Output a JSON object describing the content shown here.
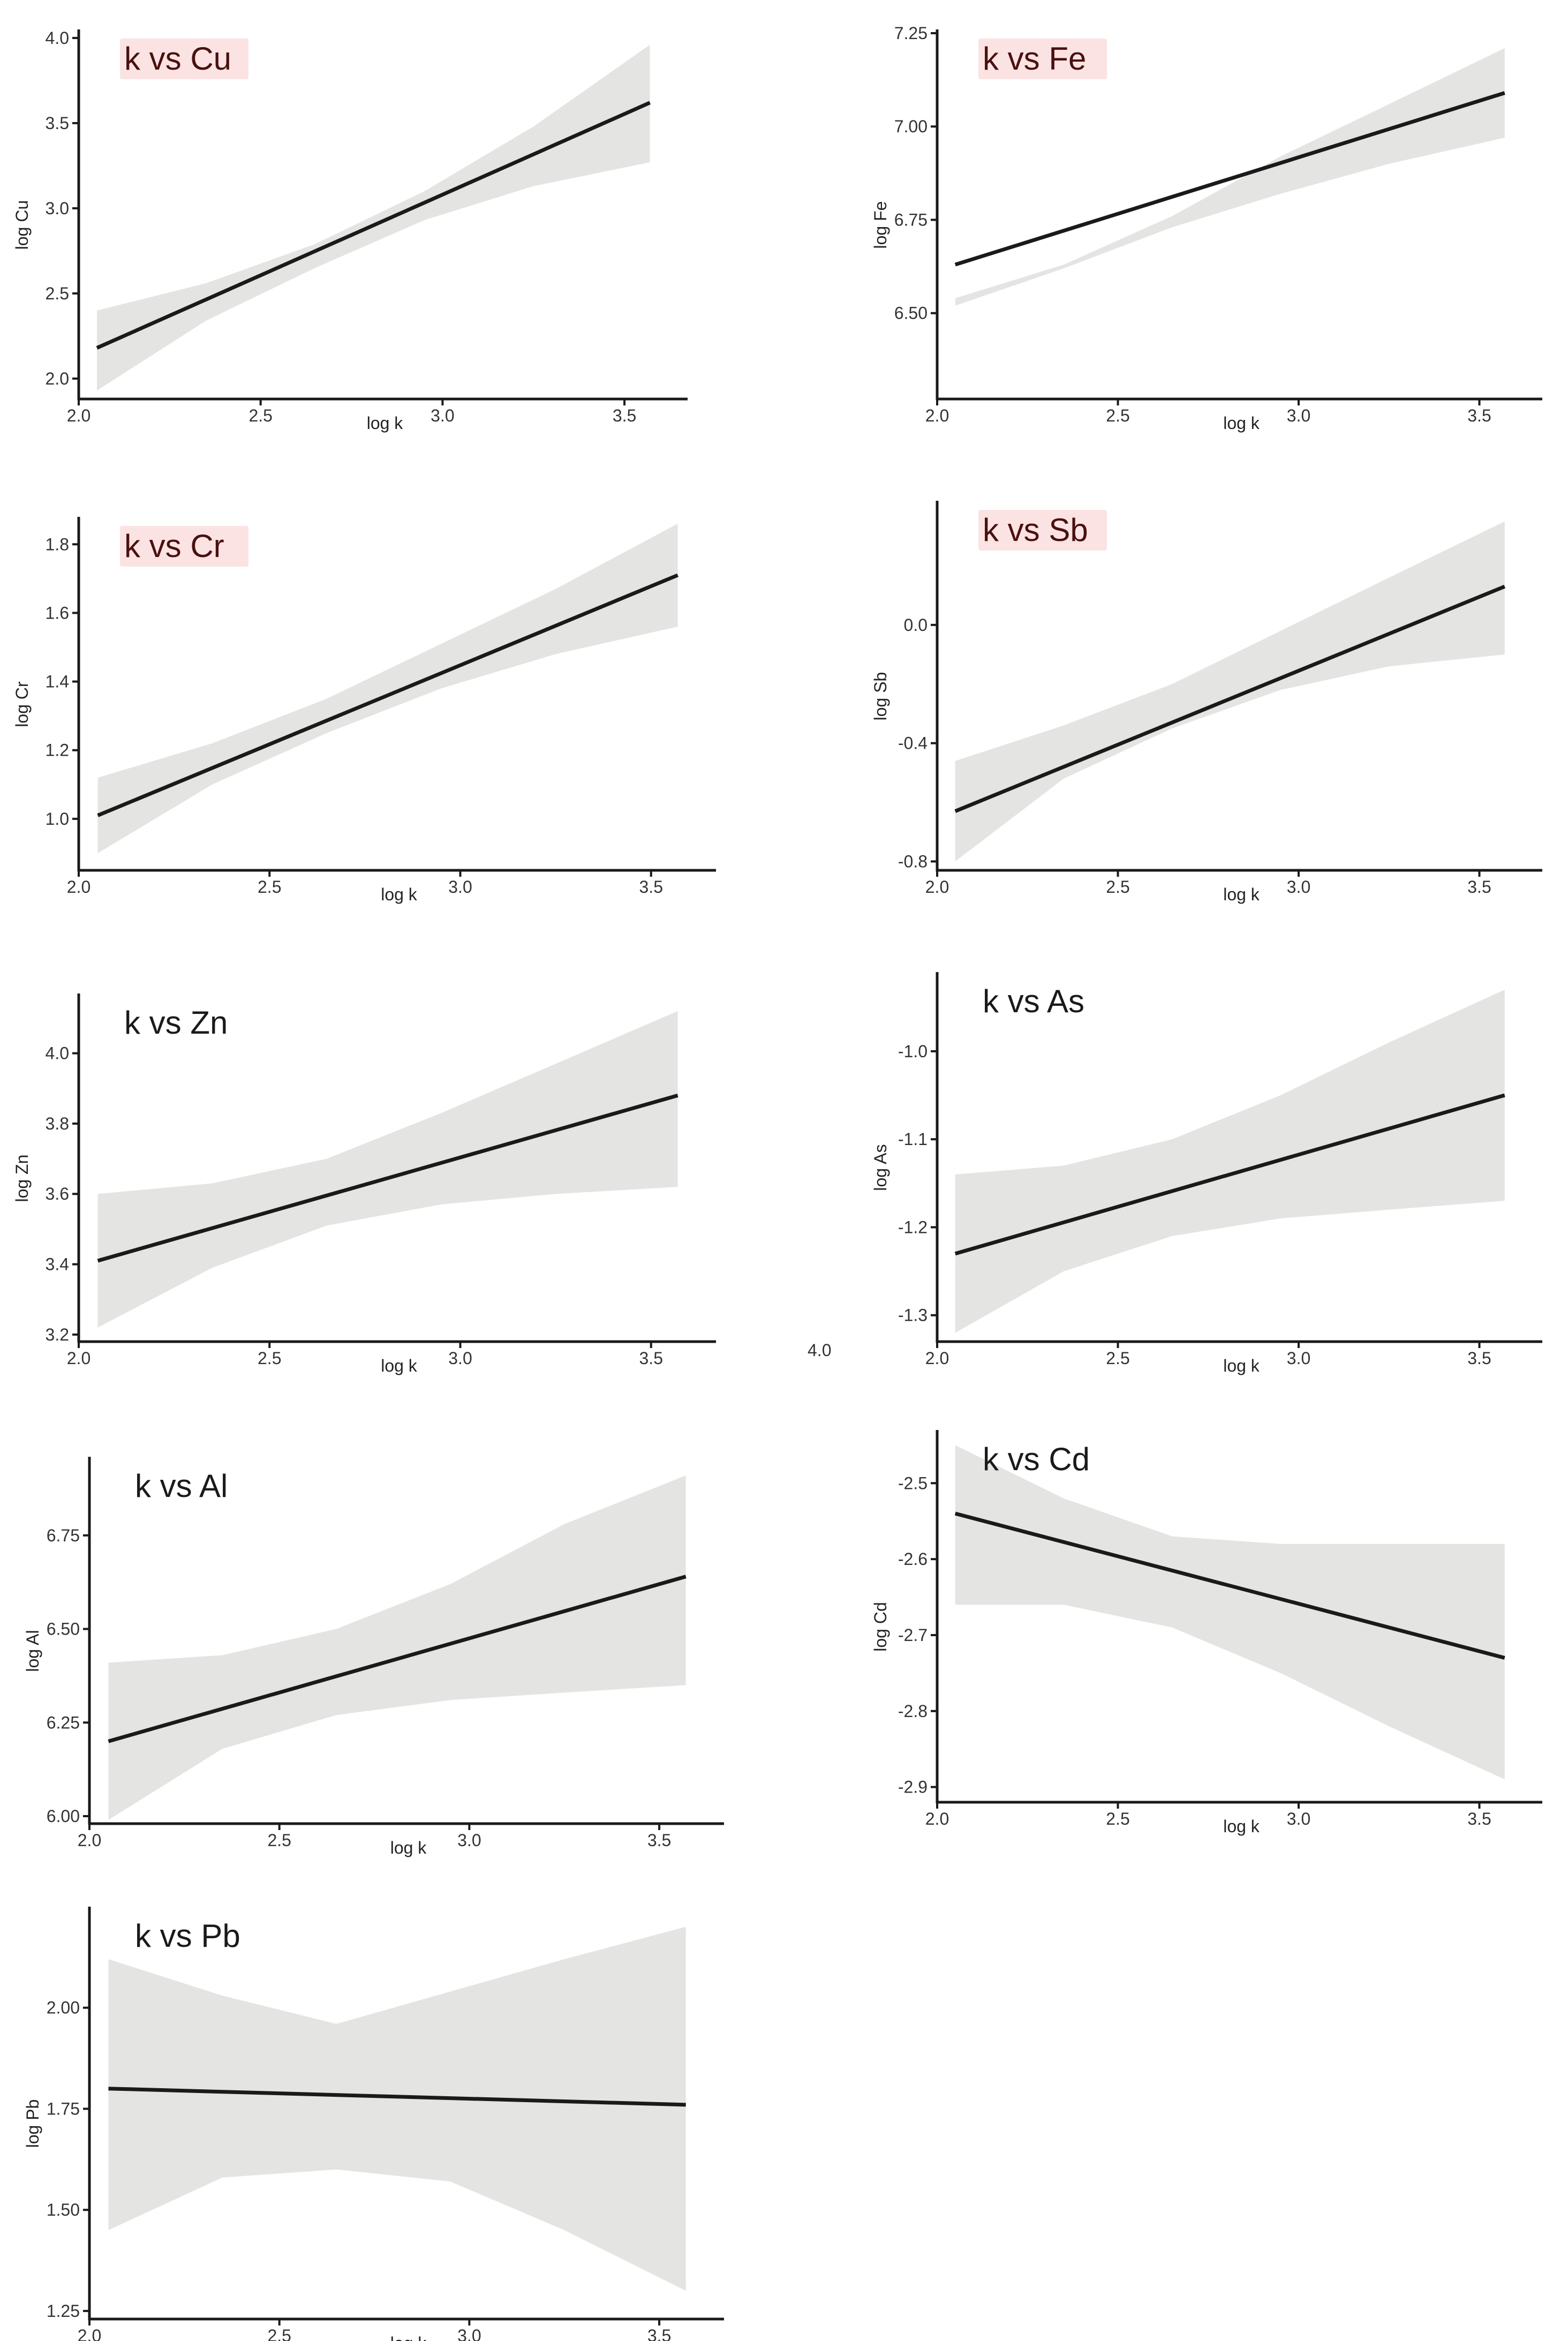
{
  "figure": {
    "stray_label": "4.0",
    "colors": {
      "band": "#e4e4e2",
      "line": "#1a1a1a",
      "axis": "#1a1a1a",
      "title_red": "#4a1010",
      "title_bg": "#fbe3e3"
    }
  },
  "chart_data": [
    {
      "id": "cu",
      "type": "line",
      "title": "k vs Cu",
      "title_style": "highlight",
      "xlabel": "log k",
      "ylabel": "log Cu",
      "xlim": [
        2.0,
        3.6
      ],
      "ylim": [
        1.88,
        4.05
      ],
      "xticks": [
        2.0,
        2.5,
        3.0,
        3.5
      ],
      "xtick_labels": [
        "2.0",
        "2.5",
        "3.0",
        "3.5"
      ],
      "yticks": [
        2.0,
        2.5,
        3.0,
        3.5,
        4.0
      ],
      "ytick_labels": [
        "2.0",
        "2.5",
        "3.0",
        "3.5",
        "4.0"
      ],
      "fit": {
        "x": [
          2.05,
          3.57
        ],
        "y": [
          2.18,
          3.62
        ]
      },
      "band": {
        "x": [
          2.05,
          2.35,
          2.65,
          2.95,
          3.25,
          3.57
        ],
        "lower": [
          1.93,
          2.34,
          2.65,
          2.93,
          3.13,
          3.27
        ],
        "upper": [
          2.4,
          2.56,
          2.79,
          3.1,
          3.48,
          3.96
        ]
      }
    },
    {
      "id": "fe",
      "type": "line",
      "title": "k vs Fe",
      "title_style": "highlight",
      "xlabel": "log k",
      "ylabel": "log Fe",
      "xlim": [
        2.0,
        3.6
      ],
      "ylim": [
        6.27,
        7.26
      ],
      "xticks": [
        2.0,
        2.5,
        3.0,
        3.5
      ],
      "xtick_labels": [
        "2.0",
        "2.5",
        "3.0",
        "3.5"
      ],
      "yticks": [
        6.5,
        6.75,
        7.0,
        7.25
      ],
      "ytick_labels": [
        "6.50",
        "6.75",
        "7.00",
        "7.25"
      ],
      "fit": {
        "x": [
          2.05,
          3.57
        ],
        "y": [
          6.63,
          7.09
        ]
      },
      "band": {
        "x": [
          2.05,
          2.35,
          2.65,
          2.95,
          3.25,
          3.57
        ],
        "lower": [
          6.52,
          6.62,
          6.73,
          6.82,
          6.9,
          6.97
        ],
        "upper": [
          6.54,
          6.63,
          6.76,
          6.92,
          7.06,
          7.21
        ]
      }
    },
    {
      "id": "cr",
      "type": "line",
      "title": "k vs Cr",
      "title_style": "highlight",
      "xlabel": "log k",
      "ylabel": "log Cr",
      "xlim": [
        2.0,
        3.6
      ],
      "ylim": [
        0.85,
        1.88
      ],
      "xticks": [
        2.0,
        2.5,
        3.0,
        3.5
      ],
      "xtick_labels": [
        "2.0",
        "2.5",
        "3.0",
        "3.5"
      ],
      "yticks": [
        1.0,
        1.2,
        1.4,
        1.6,
        1.8
      ],
      "ytick_labels": [
        "1.0",
        "1.2",
        "1.4",
        "1.6",
        "1.8"
      ],
      "fit": {
        "x": [
          2.05,
          3.57
        ],
        "y": [
          1.01,
          1.71
        ]
      },
      "band": {
        "x": [
          2.05,
          2.35,
          2.65,
          2.95,
          3.25,
          3.57
        ],
        "lower": [
          0.9,
          1.1,
          1.25,
          1.38,
          1.48,
          1.56
        ],
        "upper": [
          1.12,
          1.22,
          1.35,
          1.51,
          1.67,
          1.86
        ]
      }
    },
    {
      "id": "sb",
      "type": "line",
      "title": "k vs Sb",
      "title_style": "highlight",
      "xlabel": "log k",
      "ylabel": "log Sb",
      "xlim": [
        2.0,
        3.6
      ],
      "ylim": [
        -0.83,
        0.42
      ],
      "xticks": [
        2.0,
        2.5,
        3.0,
        3.5
      ],
      "xtick_labels": [
        "2.0",
        "2.5",
        "3.0",
        "3.5"
      ],
      "yticks": [
        -0.8,
        -0.4,
        0.0
      ],
      "ytick_labels": [
        "-0.8",
        "-0.4",
        "0.0"
      ],
      "fit": {
        "x": [
          2.05,
          3.57
        ],
        "y": [
          -0.63,
          0.13
        ]
      },
      "band": {
        "x": [
          2.05,
          2.35,
          2.65,
          2.95,
          3.25,
          3.57
        ],
        "lower": [
          -0.8,
          -0.52,
          -0.35,
          -0.22,
          -0.14,
          -0.1
        ],
        "upper": [
          -0.46,
          -0.34,
          -0.2,
          -0.02,
          0.16,
          0.35
        ]
      }
    },
    {
      "id": "zn",
      "type": "line",
      "title": "k vs Zn",
      "title_style": "plain",
      "xlabel": "log k",
      "ylabel": "log Zn",
      "xlim": [
        2.0,
        3.6
      ],
      "ylim": [
        3.18,
        4.17
      ],
      "xticks": [
        2.0,
        2.5,
        3.0,
        3.5
      ],
      "xtick_labels": [
        "2.0",
        "2.5",
        "3.0",
        "3.5"
      ],
      "yticks": [
        3.2,
        3.4,
        3.6,
        3.8,
        4.0
      ],
      "ytick_labels": [
        "3.2",
        "3.4",
        "3.6",
        "3.8",
        "4.0"
      ],
      "fit": {
        "x": [
          2.05,
          3.57
        ],
        "y": [
          3.41,
          3.88
        ]
      },
      "band": {
        "x": [
          2.05,
          2.35,
          2.65,
          2.95,
          3.25,
          3.57
        ],
        "lower": [
          3.22,
          3.39,
          3.51,
          3.57,
          3.6,
          3.62
        ],
        "upper": [
          3.6,
          3.63,
          3.7,
          3.83,
          3.97,
          4.12
        ]
      }
    },
    {
      "id": "as",
      "type": "line",
      "title": "k vs As",
      "title_style": "plain",
      "xlabel": "log k",
      "ylabel": "log As",
      "xlim": [
        2.0,
        3.6
      ],
      "ylim": [
        -1.33,
        -0.91
      ],
      "xticks": [
        2.0,
        2.5,
        3.0,
        3.5
      ],
      "xtick_labels": [
        "2.0",
        "2.5",
        "3.0",
        "3.5"
      ],
      "yticks": [
        -1.3,
        -1.2,
        -1.1,
        -1.0
      ],
      "ytick_labels": [
        "-1.3",
        "-1.2",
        "-1.1",
        "-1.0"
      ],
      "fit": {
        "x": [
          2.05,
          3.57
        ],
        "y": [
          -1.23,
          -1.05
        ]
      },
      "band": {
        "x": [
          2.05,
          2.35,
          2.65,
          2.95,
          3.25,
          3.57
        ],
        "lower": [
          -1.32,
          -1.25,
          -1.21,
          -1.19,
          -1.18,
          -1.17
        ],
        "upper": [
          -1.14,
          -1.13,
          -1.1,
          -1.05,
          -0.99,
          -0.93
        ]
      }
    },
    {
      "id": "al",
      "type": "line",
      "title": "k vs Al",
      "title_style": "plain",
      "xlabel": "log k",
      "ylabel": "log Al",
      "xlim": [
        2.0,
        3.6
      ],
      "ylim": [
        5.98,
        6.96
      ],
      "xticks": [
        2.0,
        2.5,
        3.0,
        3.5
      ],
      "xtick_labels": [
        "2.0",
        "2.5",
        "3.0",
        "3.5"
      ],
      "yticks": [
        6.0,
        6.25,
        6.5,
        6.75
      ],
      "ytick_labels": [
        "6.00",
        "6.25",
        "6.50",
        "6.75"
      ],
      "fit": {
        "x": [
          2.05,
          3.57
        ],
        "y": [
          6.2,
          6.64
        ]
      },
      "band": {
        "x": [
          2.05,
          2.35,
          2.65,
          2.95,
          3.25,
          3.57
        ],
        "lower": [
          5.99,
          6.18,
          6.27,
          6.31,
          6.33,
          6.35
        ],
        "upper": [
          6.41,
          6.43,
          6.5,
          6.62,
          6.78,
          6.91
        ]
      }
    },
    {
      "id": "cd",
      "type": "line",
      "title": "k vs Cd",
      "title_style": "plain",
      "xlabel": "log k",
      "ylabel": "log Cd",
      "xlim": [
        2.0,
        3.6
      ],
      "ylim": [
        -2.92,
        -2.43
      ],
      "xticks": [
        2.0,
        2.5,
        3.0,
        3.5
      ],
      "xtick_labels": [
        "2.0",
        "2.5",
        "3.0",
        "3.5"
      ],
      "yticks": [
        -2.9,
        -2.8,
        -2.7,
        -2.6,
        -2.5
      ],
      "ytick_labels": [
        "-2.9",
        "-2.8",
        "-2.7",
        "-2.6",
        "-2.5"
      ],
      "fit": {
        "x": [
          2.05,
          3.57
        ],
        "y": [
          -2.54,
          -2.73
        ]
      },
      "band": {
        "x": [
          2.05,
          2.35,
          2.65,
          2.95,
          3.25,
          3.57
        ],
        "lower": [
          -2.66,
          -2.66,
          -2.69,
          -2.75,
          -2.82,
          -2.89
        ],
        "upper": [
          -2.45,
          -2.52,
          -2.57,
          -2.58,
          -2.58,
          -2.58
        ]
      }
    },
    {
      "id": "pb",
      "type": "line",
      "title": "k vs Pb",
      "title_style": "plain",
      "xlabel": "log k",
      "ylabel": "log Pb",
      "xlim": [
        2.0,
        3.6
      ],
      "ylim": [
        1.23,
        2.25
      ],
      "xticks": [
        2.0,
        2.5,
        3.0,
        3.5
      ],
      "xtick_labels": [
        "2.0",
        "2.5",
        "3.0",
        "3.5"
      ],
      "yticks": [
        1.25,
        1.5,
        1.75,
        2.0
      ],
      "ytick_labels": [
        "1.25",
        "1.50",
        "1.75",
        "2.00"
      ],
      "fit": {
        "x": [
          2.05,
          3.57
        ],
        "y": [
          1.8,
          1.76
        ]
      },
      "band": {
        "x": [
          2.05,
          2.35,
          2.65,
          2.95,
          3.25,
          3.57
        ],
        "lower": [
          1.45,
          1.58,
          1.6,
          1.57,
          1.45,
          1.3
        ],
        "upper": [
          2.12,
          2.03,
          1.96,
          2.04,
          2.12,
          2.2
        ]
      }
    }
  ]
}
